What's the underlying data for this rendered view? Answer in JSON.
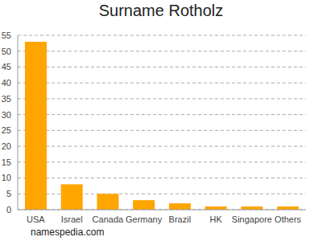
{
  "chart_data": {
    "type": "bar",
    "title": "Surname Rotholz",
    "categories": [
      "USA",
      "Israel",
      "Canada",
      "Germany",
      "Brazil",
      "HK",
      "Singapore",
      "Others"
    ],
    "values": [
      53,
      8,
      5,
      3,
      2,
      1,
      1,
      1
    ],
    "color": "#ffa500",
    "ylim": [
      0,
      55
    ],
    "yticks": [
      0,
      5,
      10,
      15,
      20,
      25,
      30,
      35,
      40,
      45,
      50,
      55
    ],
    "grid": true,
    "annotations": [
      "namespedia.com"
    ]
  }
}
